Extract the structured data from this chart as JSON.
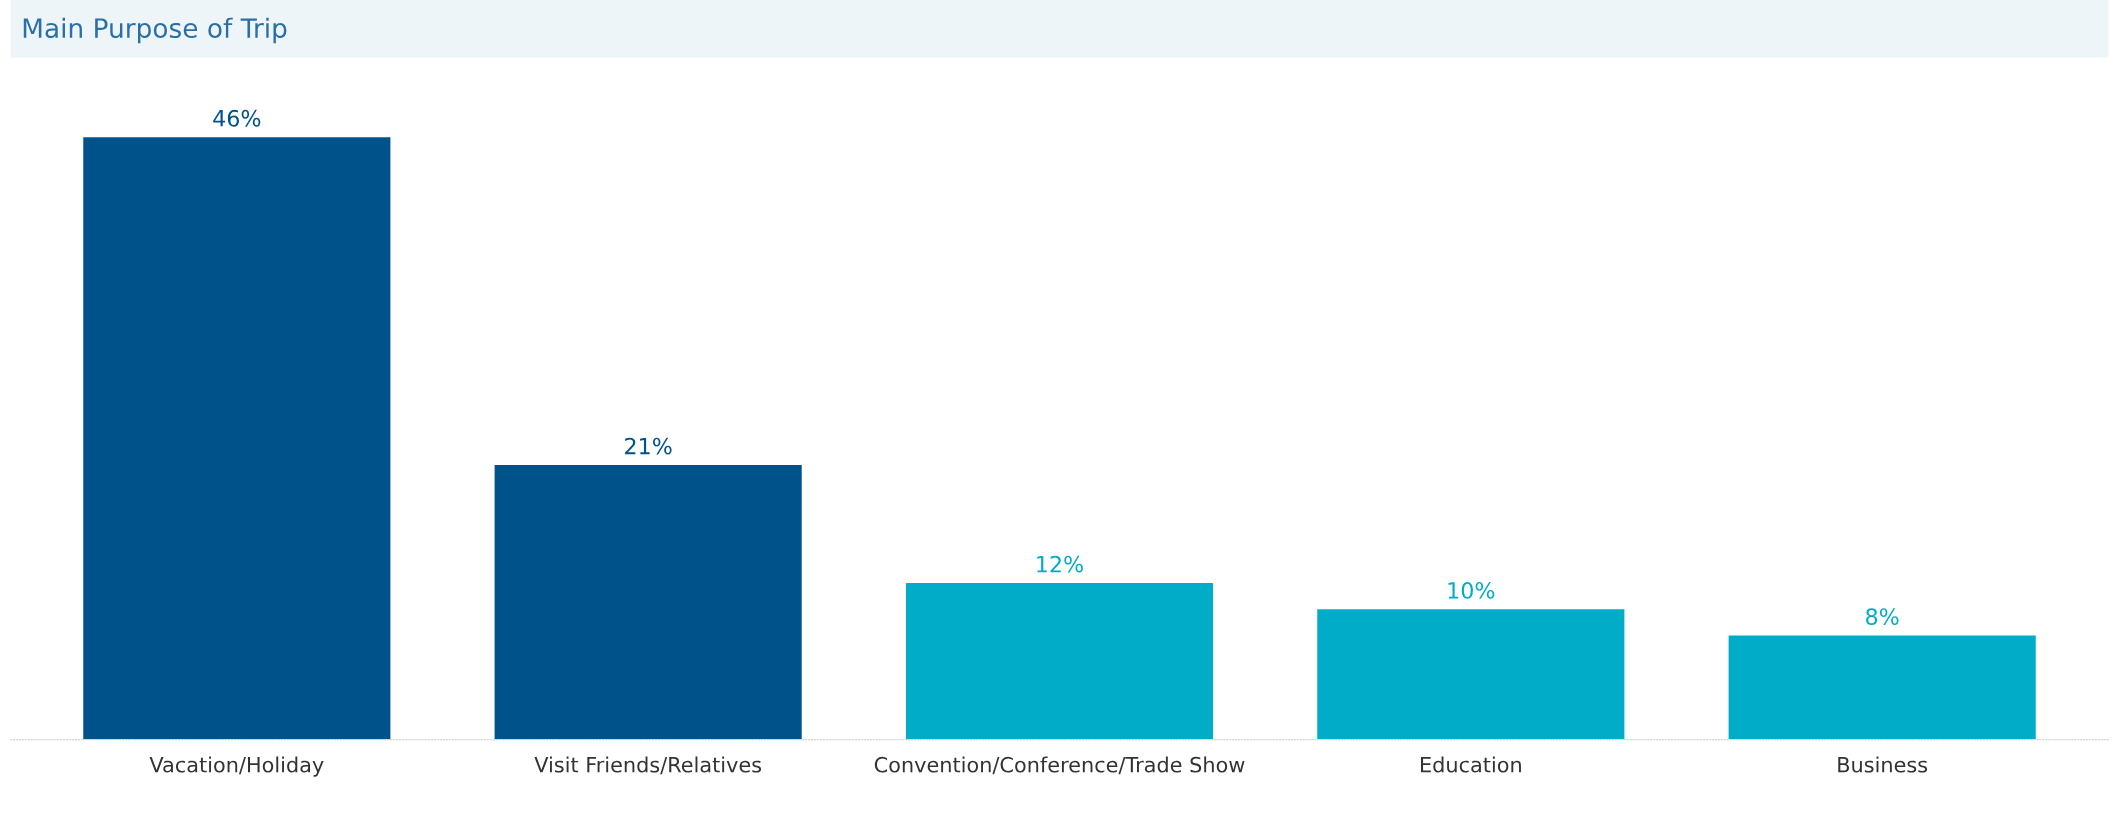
{
  "chart_data": {
    "type": "bar",
    "title": "Main Purpose of Trip",
    "categories": [
      "Vacation/Holiday",
      "Visit Friends/Relatives",
      "Convention/Conference/Trade Show",
      "Education",
      "Business"
    ],
    "values": [
      46,
      21,
      12,
      10,
      8
    ],
    "colors": [
      "#00538a",
      "#00538a",
      "#00acc8",
      "#00acc8",
      "#00acc8"
    ],
    "value_labels": [
      "46%",
      "21%",
      "12%",
      "10%",
      "8%"
    ],
    "grid": false,
    "legend": false
  }
}
